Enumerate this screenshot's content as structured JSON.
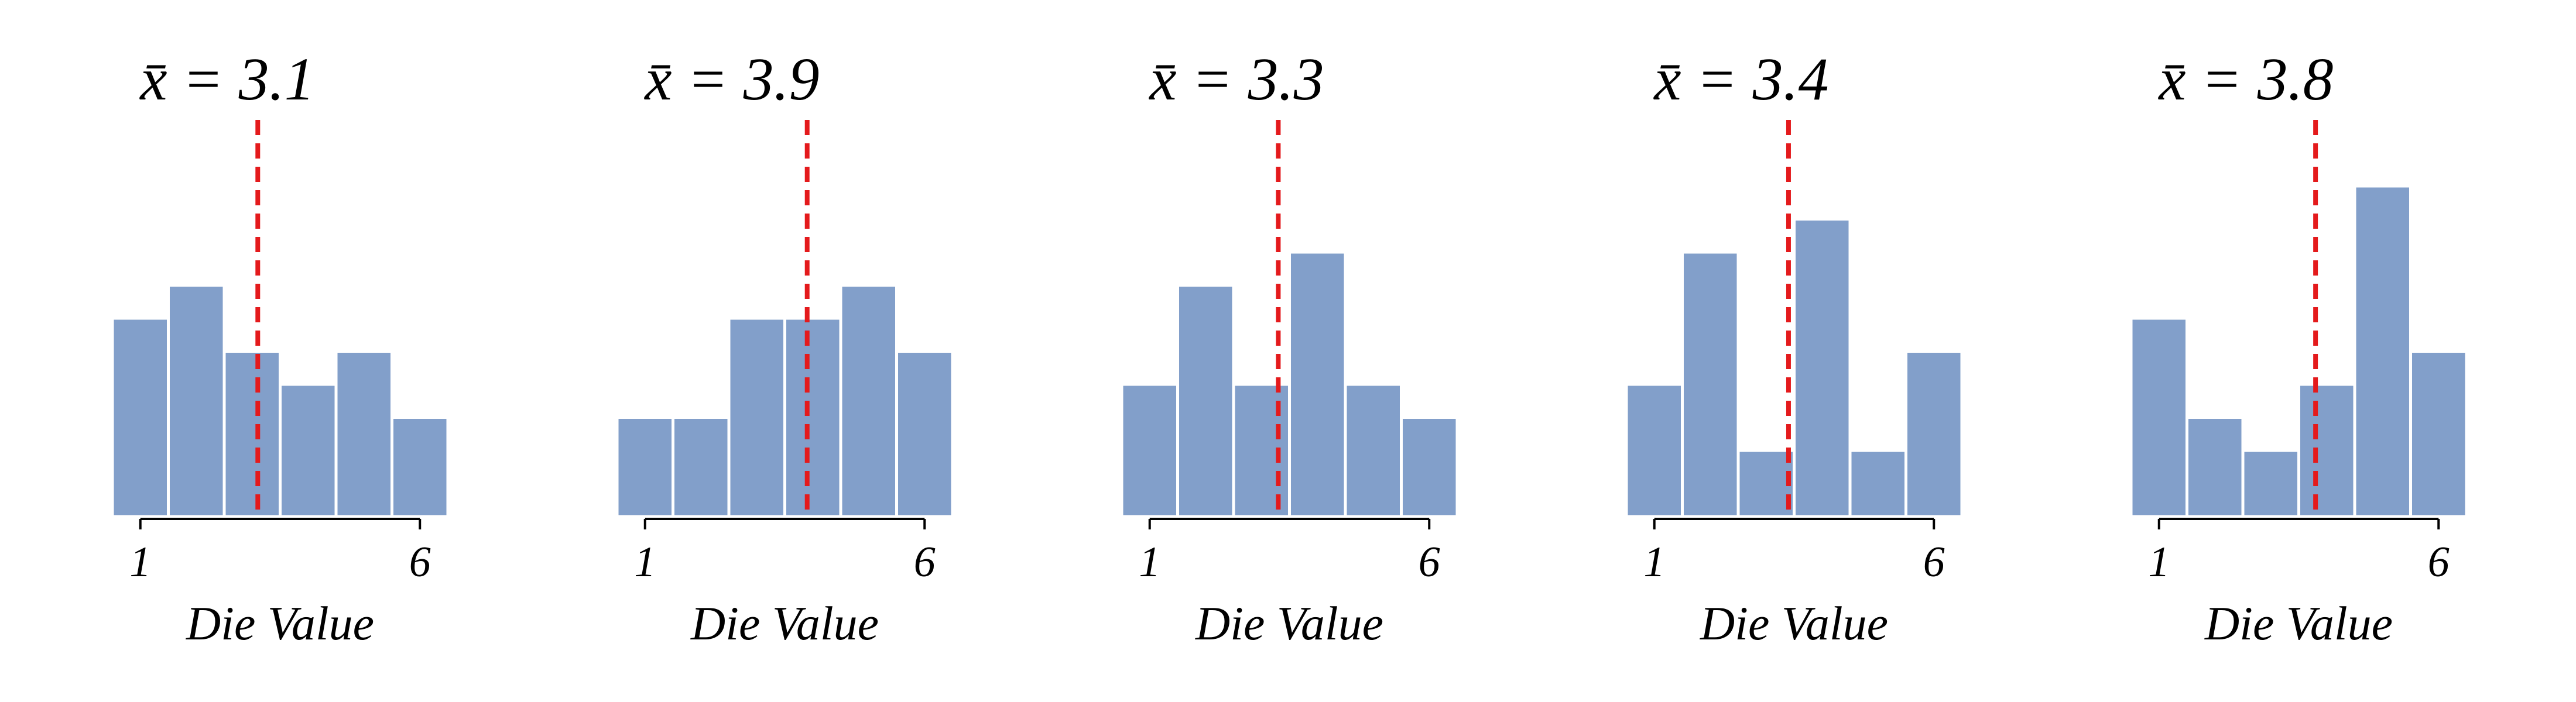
{
  "chart_data": [
    {
      "type": "bar",
      "title": "x̄ = 3.1",
      "xlabel": "Die Value",
      "ylabel": "",
      "categories": [
        "1",
        "2",
        "3",
        "4",
        "5",
        "6"
      ],
      "values": [
        6,
        7,
        5,
        4,
        5,
        3
      ],
      "mean": 3.1,
      "xticks": [
        "1",
        "6"
      ],
      "ylim": [
        0,
        10
      ],
      "grid": false,
      "colors": {
        "bar": "#829fca",
        "mean_line": "#e41a1c"
      }
    },
    {
      "type": "bar",
      "title": "x̄ = 3.9",
      "xlabel": "Die Value",
      "ylabel": "",
      "categories": [
        "1",
        "2",
        "3",
        "4",
        "5",
        "6"
      ],
      "values": [
        3,
        3,
        6,
        6,
        7,
        5
      ],
      "mean": 3.9,
      "xticks": [
        "1",
        "6"
      ],
      "ylim": [
        0,
        10
      ],
      "grid": false,
      "colors": {
        "bar": "#829fca",
        "mean_line": "#e41a1c"
      }
    },
    {
      "type": "bar",
      "title": "x̄ = 3.3",
      "xlabel": "Die Value",
      "ylabel": "",
      "categories": [
        "1",
        "2",
        "3",
        "4",
        "5",
        "6"
      ],
      "values": [
        4,
        7,
        4,
        8,
        4,
        3
      ],
      "mean": 3.3,
      "xticks": [
        "1",
        "6"
      ],
      "ylim": [
        0,
        10
      ],
      "grid": false,
      "colors": {
        "bar": "#829fca",
        "mean_line": "#e41a1c"
      }
    },
    {
      "type": "bar",
      "title": "x̄ = 3.4",
      "xlabel": "Die Value",
      "ylabel": "",
      "categories": [
        "1",
        "2",
        "3",
        "4",
        "5",
        "6"
      ],
      "values": [
        4,
        8,
        2,
        9,
        2,
        5
      ],
      "mean": 3.4,
      "xticks": [
        "1",
        "6"
      ],
      "ylim": [
        0,
        10
      ],
      "grid": false,
      "colors": {
        "bar": "#829fca",
        "mean_line": "#e41a1c"
      }
    },
    {
      "type": "bar",
      "title": "x̄ = 3.8",
      "xlabel": "Die Value",
      "ylabel": "",
      "categories": [
        "1",
        "2",
        "3",
        "4",
        "5",
        "6"
      ],
      "values": [
        6,
        3,
        2,
        4,
        10,
        5
      ],
      "mean": 3.8,
      "xticks": [
        "1",
        "6"
      ],
      "ylim": [
        0,
        10
      ],
      "grid": false,
      "colors": {
        "bar": "#829fca",
        "mean_line": "#e41a1c"
      }
    }
  ]
}
